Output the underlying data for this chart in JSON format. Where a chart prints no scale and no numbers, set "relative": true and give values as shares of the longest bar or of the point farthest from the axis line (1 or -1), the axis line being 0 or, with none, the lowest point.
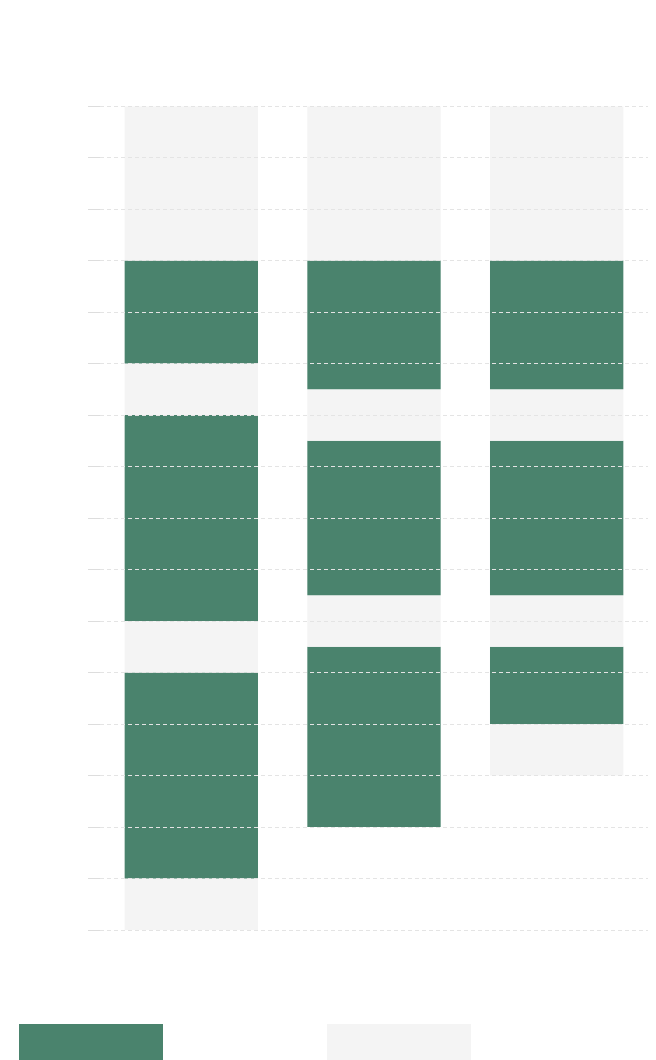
{
  "chart_data": {
    "type": "bar",
    "relative": true,
    "stacked": true,
    "categories": [
      null,
      null,
      null
    ],
    "series": [
      {
        "color": "#f4f4f4",
        "values": [
          -0.1875,
          -0.1875,
          -0.1875
        ]
      },
      {
        "color": "#4a836d",
        "values": [
          -0.125,
          -0.15625,
          -0.15625
        ]
      },
      {
        "color": "#f4f4f4",
        "values": [
          -0.0625,
          -0.0625,
          -0.0625
        ]
      },
      {
        "color": "#4a836d",
        "values": [
          -0.25,
          -0.1875,
          -0.1875
        ]
      },
      {
        "color": "#f4f4f4",
        "values": [
          -0.0625,
          -0.0625,
          -0.0625
        ]
      },
      {
        "color": "#4a836d",
        "values": [
          -0.25,
          -0.21875,
          -0.09375
        ]
      },
      {
        "color": "#f4f4f4",
        "values": [
          -0.0625,
          null,
          -0.0625
        ]
      }
    ],
    "grid": true
  }
}
